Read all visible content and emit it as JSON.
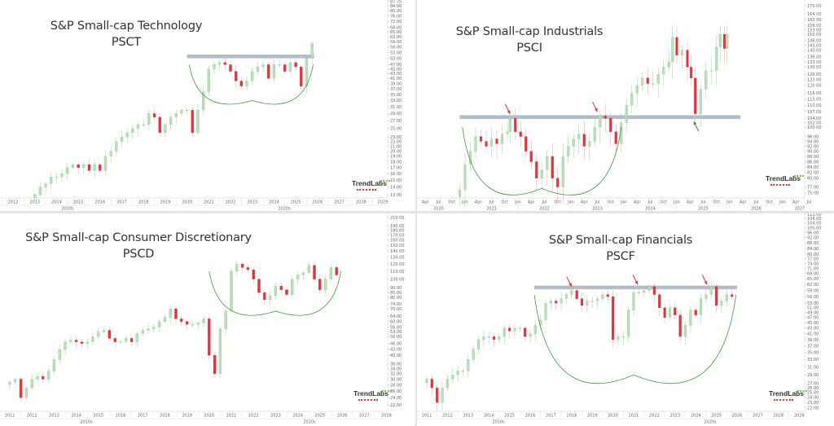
{
  "chart_data": [
    {
      "type": "candlestick",
      "title": "S&P Small-cap Technology",
      "subtitle": "PSCT",
      "y_scale": "log",
      "ylim": [
        13,
        87.75
      ],
      "y_ticks": [
        "87.75",
        "84.00",
        "80.00",
        "76.00",
        "72.00",
        "68.00",
        "65.00",
        "62.00",
        "59.00",
        "56.00",
        "53.00",
        "50.00",
        "47.00",
        "45.00",
        "43.00",
        "41.00",
        "39.00",
        "37.00",
        "35.00",
        "33.00",
        "31.00",
        "29.00",
        "27.00",
        "25.00",
        "23.00",
        "22.00",
        "21.00",
        "20.00",
        "19.00",
        "18.00",
        "17.00",
        "16.00",
        "15.00",
        "14.00",
        "13.00"
      ],
      "x_ticks": [
        "2012",
        "2013",
        "2014",
        "2015",
        "2016",
        "2017",
        "2018",
        "2019",
        "2020",
        "2021",
        "2022",
        "2023",
        "2024",
        "2025",
        "2026",
        "2027",
        "2028",
        "2029"
      ],
      "x_groups": [
        "2010s",
        "2020s"
      ],
      "resistance": 51,
      "arc": {
        "start": [
          2020.1,
          47
        ],
        "bottom": [
          2023.0,
          33
        ],
        "end": [
          2025.8,
          47
        ]
      },
      "arrows": [],
      "x": [
        2013,
        2013.25,
        2013.5,
        2013.75,
        2014,
        2014.25,
        2014.5,
        2014.75,
        2015,
        2015.25,
        2015.5,
        2015.75,
        2016,
        2016.25,
        2016.5,
        2016.75,
        2017,
        2017.25,
        2017.5,
        2017.75,
        2018,
        2018.25,
        2018.5,
        2018.75,
        2019,
        2019.25,
        2019.5,
        2019.75,
        2020,
        2020.25,
        2020.5,
        2020.75,
        2021,
        2021.25,
        2021.5,
        2021.75,
        2022,
        2022.25,
        2022.5,
        2022.75,
        2023,
        2023.25,
        2023.5,
        2023.75,
        2024,
        2024.25,
        2024.5,
        2024.75,
        2025,
        2025.25,
        2025.5,
        2025.75
      ],
      "close": [
        13,
        14,
        14.5,
        15.5,
        15.5,
        16,
        17,
        17.5,
        17,
        17.5,
        16.5,
        17.5,
        16.5,
        19,
        20,
        22,
        23,
        24,
        25,
        26,
        26,
        29,
        28,
        24,
        26,
        28,
        29,
        30,
        30,
        24,
        30,
        36,
        45,
        47,
        48,
        47,
        44,
        40,
        38,
        40,
        44,
        46,
        47,
        41,
        47,
        47,
        44,
        48,
        46,
        38,
        50,
        58
      ],
      "legend": "none",
      "watermark": "TrendLabs"
    },
    {
      "type": "candlestick",
      "title": "S&P Small-cap Industrials",
      "subtitle": "PSCI",
      "y_scale": "log",
      "ylim": [
        75,
        174
      ],
      "y_ticks": [
        "174.00",
        "170.00",
        "164.00",
        "160.00",
        "156.00",
        "153.00",
        "150.00",
        "146.00",
        "143.00",
        "140.00",
        "136.00",
        "133.00",
        "130.00",
        "126.00",
        "123.00",
        "120.00",
        "116.00",
        "113.00",
        "110.00",
        "107.00",
        "104.00",
        "102.00",
        "100.00",
        "96.00",
        "94.00",
        "92.00",
        "90.00",
        "88.00",
        "86.00",
        "84.00",
        "82.00",
        "80.00",
        "77.00",
        "75.00"
      ],
      "x_ticks": [
        "Apr",
        "Jul",
        "Oct",
        "Jan",
        "Apr",
        "Jul",
        "Oct",
        "Jan",
        "Apr",
        "Jul",
        "Oct",
        "Jan",
        "Apr",
        "Jul",
        "Oct",
        "Jan",
        "Apr",
        "Jul",
        "Oct",
        "Jan",
        "Apr",
        "Jul",
        "Oct",
        "Jan",
        "Apr",
        "Jul",
        "Oct",
        "Jan",
        "Apr",
        "Jul"
      ],
      "x_groups": [
        "2020",
        "2021",
        "2022",
        "2023",
        "2024",
        "2025",
        "2026",
        "2027"
      ],
      "resistance": 104.5,
      "arc": {
        "start": [
          2020.95,
          100
        ],
        "bottom": [
          2022.45,
          76.5
        ],
        "end": [
          2023.95,
          100
        ]
      },
      "arrows": [
        {
          "at": [
            2021.85,
            106
          ],
          "direction": "down-right",
          "color": "#e8303a"
        },
        {
          "at": [
            2023.5,
            107
          ],
          "direction": "down-right",
          "color": "#e8303a"
        },
        {
          "at": [
            2025.32,
            102.5
          ],
          "direction": "up-left",
          "color": "#2e8b3a"
        }
      ],
      "x": [
        2020.9,
        2021.0,
        2021.1,
        2021.2,
        2021.3,
        2021.4,
        2021.5,
        2021.6,
        2021.7,
        2021.8,
        2021.85,
        2021.95,
        2022.05,
        2022.15,
        2022.25,
        2022.35,
        2022.45,
        2022.55,
        2022.65,
        2022.75,
        2022.85,
        2022.95,
        2023.05,
        2023.15,
        2023.25,
        2023.35,
        2023.45,
        2023.55,
        2023.65,
        2023.75,
        2023.85,
        2023.95,
        2024.05,
        2024.15,
        2024.25,
        2024.35,
        2024.45,
        2024.55,
        2024.65,
        2024.75,
        2024.85,
        2024.92,
        2025.0,
        2025.1,
        2025.2,
        2025.27,
        2025.35,
        2025.45,
        2025.55,
        2025.65,
        2025.75,
        2025.82,
        2025.9,
        2025.95
      ],
      "close": [
        76,
        85,
        90,
        96,
        94,
        92,
        95,
        93,
        97,
        98,
        104,
        98,
        96,
        90,
        86,
        80,
        83,
        88,
        80,
        77,
        88,
        92,
        95,
        97,
        92,
        94,
        100,
        105,
        104,
        98,
        93,
        102,
        110,
        116,
        120,
        124,
        121,
        121,
        126,
        130,
        133,
        148,
        137,
        140,
        130,
        124,
        106,
        118,
        128,
        128,
        142,
        150,
        141,
        150
      ],
      "legend": "none",
      "watermark": "TrendLabs"
    },
    {
      "type": "candlestick",
      "title": "S&P Small-cap Consumer Discretionary",
      "subtitle": "PSCD",
      "y_scale": "log",
      "ylim": [
        22,
        210
      ],
      "y_ticks": [
        "210.00",
        "190.00",
        "180.00",
        "170.00",
        "160.00",
        "150.00",
        "140.00",
        "130.00",
        "120.00",
        "110.00",
        "100.00",
        "90.00",
        "85.00",
        "80.00",
        "74.00",
        "70.00",
        "64.00",
        "60.00",
        "56.00",
        "53.00",
        "50.00",
        "46.00",
        "43.00",
        "40.00",
        "36.00",
        "34.00",
        "32.00",
        "30.00",
        "28.00",
        "26.00",
        "24.00",
        "22.00"
      ],
      "x_ticks": [
        "2011",
        "2012",
        "2013",
        "2014",
        "2015",
        "2016",
        "2017",
        "2018",
        "2019",
        "2020",
        "2021",
        "2022",
        "2023",
        "2024",
        "2025",
        "2026",
        "2027",
        "2028"
      ],
      "x_groups": [
        "2010s",
        "2020s"
      ],
      "resistance": null,
      "arc": {
        "start": [
          2020.0,
          110
        ],
        "bottom": [
          2023.0,
          68
        ],
        "end": [
          2025.95,
          110
        ]
      },
      "arrows": [],
      "x": [
        2011,
        2011.25,
        2011.5,
        2011.75,
        2012,
        2012.25,
        2012.5,
        2012.75,
        2013,
        2013.25,
        2013.5,
        2013.75,
        2014,
        2014.25,
        2014.5,
        2014.75,
        2015,
        2015.25,
        2015.5,
        2015.75,
        2016,
        2016.25,
        2016.5,
        2016.75,
        2017,
        2017.25,
        2017.5,
        2017.75,
        2018,
        2018.25,
        2018.5,
        2018.75,
        2019,
        2019.25,
        2019.5,
        2019.75,
        2020,
        2020.25,
        2020.5,
        2020.75,
        2021,
        2021.25,
        2021.5,
        2021.75,
        2022,
        2022.25,
        2022.5,
        2022.75,
        2023,
        2023.25,
        2023.5,
        2023.75,
        2024,
        2024.25,
        2024.5,
        2024.75,
        2025,
        2025.25,
        2025.5,
        2025.75
      ],
      "close": [
        29,
        30,
        24,
        27,
        30,
        31,
        30,
        33,
        38,
        43,
        47,
        48,
        47,
        46,
        47,
        50,
        53,
        54,
        49,
        47,
        47,
        49,
        47,
        52,
        54,
        55,
        56,
        60,
        63,
        70,
        62,
        60,
        58,
        58,
        59,
        62,
        40,
        32,
        55,
        68,
        110,
        120,
        115,
        112,
        100,
        85,
        78,
        82,
        92,
        88,
        83,
        100,
        105,
        108,
        118,
        100,
        88,
        100,
        115,
        105
      ],
      "legend": "none",
      "watermark": "TrendLabs"
    },
    {
      "type": "candlestick",
      "title": "S&P Small-cap Financials",
      "subtitle": "PSCF",
      "y_scale": "log",
      "ylim": [
        22,
        112
      ],
      "y_ticks": [
        "112.00",
        "108.00",
        "104.00",
        "100.00",
        "96.00",
        "92.00",
        "88.00",
        "84.00",
        "80.00",
        "77.00",
        "74.00",
        "71.00",
        "68.00",
        "65.00",
        "62.00",
        "59.00",
        "56.00",
        "53.00",
        "51.00",
        "49.00",
        "47.00",
        "45.00",
        "43.00",
        "41.00",
        "39.00",
        "37.00",
        "35.00",
        "33.00",
        "31.00",
        "29.00",
        "27.00",
        "26.00",
        "25.00",
        "24.00",
        "23.00",
        "22.00"
      ],
      "x_ticks": [
        "2011",
        "2012",
        "2013",
        "2014",
        "2015",
        "2016",
        "2017",
        "2018",
        "2019",
        "2020",
        "2021",
        "2022",
        "2023",
        "2024",
        "2025",
        "2026",
        "2027",
        "2028",
        "2029"
      ],
      "x_groups": [
        "2010s",
        "2020s"
      ],
      "resistance": 60.5,
      "arc": {
        "start": [
          2016.2,
          57
        ],
        "bottom": [
          2021.0,
          29
        ],
        "end": [
          2025.95,
          57
        ]
      },
      "arrows": [
        {
          "at": [
            2018.0,
            61
          ],
          "direction": "down-right",
          "color": "#e8303a"
        },
        {
          "at": [
            2021.2,
            62
          ],
          "direction": "down-right",
          "color": "#e8303a"
        },
        {
          "at": [
            2024.55,
            62
          ],
          "direction": "down-right",
          "color": "#e8303a"
        }
      ],
      "x": [
        2011,
        2011.25,
        2011.5,
        2011.75,
        2012,
        2012.25,
        2012.5,
        2012.75,
        2013,
        2013.25,
        2013.5,
        2013.75,
        2014,
        2014.25,
        2014.5,
        2014.75,
        2015,
        2015.25,
        2015.5,
        2015.75,
        2016,
        2016.25,
        2016.5,
        2016.75,
        2017,
        2017.25,
        2017.5,
        2017.75,
        2018,
        2018.25,
        2018.5,
        2018.75,
        2019,
        2019.25,
        2019.5,
        2019.75,
        2020,
        2020.25,
        2020.5,
        2020.75,
        2021,
        2021.25,
        2021.5,
        2021.75,
        2022,
        2022.25,
        2022.5,
        2022.75,
        2023,
        2023.25,
        2023.5,
        2023.75,
        2024,
        2024.25,
        2024.5,
        2024.75,
        2025,
        2025.25,
        2025.5,
        2025.75
      ],
      "close": [
        28,
        26,
        23,
        26,
        28,
        29,
        30,
        30,
        33,
        36,
        39,
        40,
        40,
        39,
        40,
        43,
        42,
        43,
        43,
        40,
        41,
        44,
        46,
        53,
        54,
        53,
        55,
        57,
        59,
        55,
        52,
        54,
        54,
        55,
        57,
        56,
        39,
        40,
        40,
        50,
        58,
        58,
        59,
        61,
        57,
        51,
        47,
        51,
        48,
        40,
        44,
        50,
        48,
        55,
        57,
        61,
        52,
        54,
        57,
        56
      ],
      "legend": "none",
      "watermark": "TrendLabs"
    }
  ],
  "colors": {
    "up": "#b9deb9",
    "down": "#e8303a",
    "resistance": "#b4bcc8",
    "arc": "#3d9a3d",
    "axis_text": "#666666"
  }
}
